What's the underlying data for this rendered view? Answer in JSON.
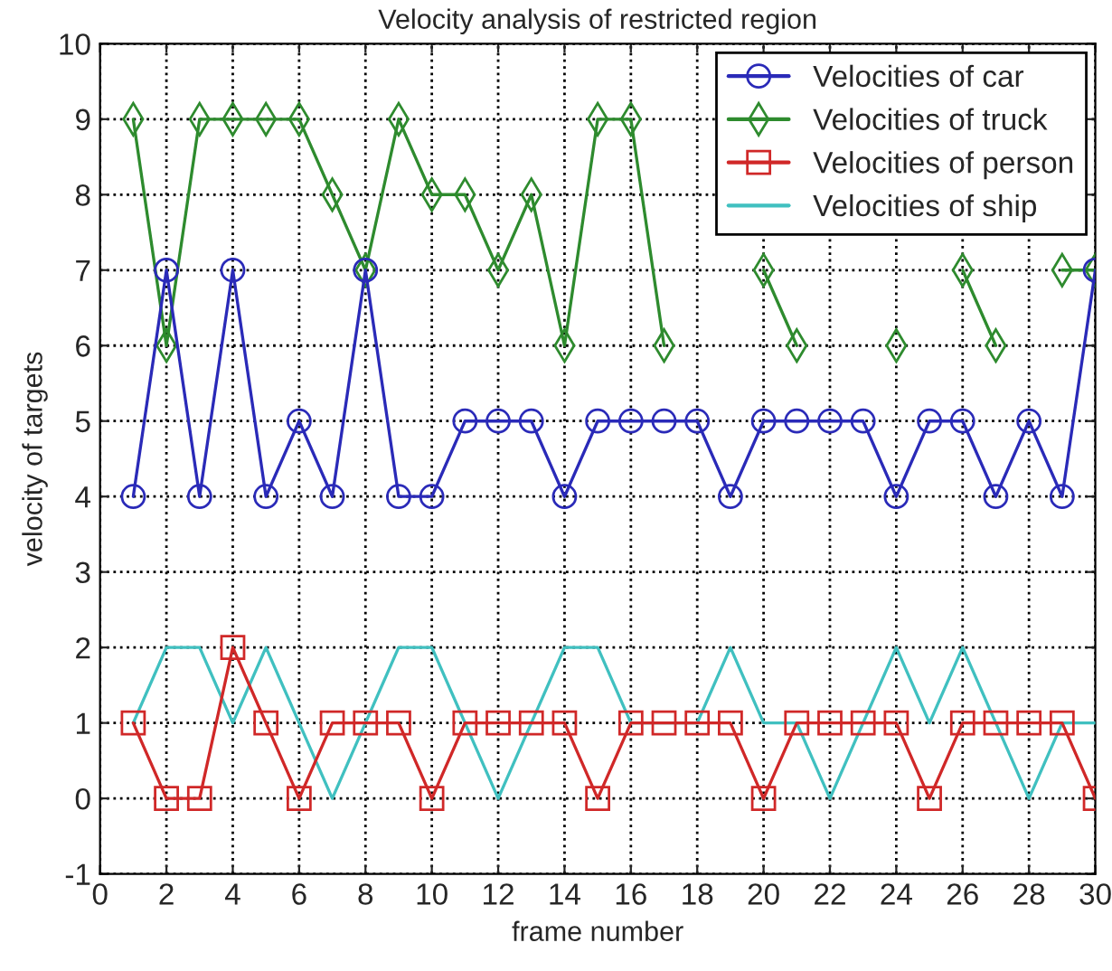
{
  "chart_data": {
    "type": "line",
    "title": "Velocity analysis of restricted region",
    "xlabel": "frame number",
    "ylabel": "velocity of targets",
    "x": [
      1,
      2,
      3,
      4,
      5,
      6,
      7,
      8,
      9,
      10,
      11,
      12,
      13,
      14,
      15,
      16,
      17,
      18,
      19,
      20,
      21,
      22,
      23,
      24,
      25,
      26,
      27,
      28,
      29,
      30
    ],
    "series": [
      {
        "name": "Velocities of car",
        "color": "#2a2ab8",
        "marker": "circle",
        "values": [
          4,
          7,
          4,
          7,
          4,
          5,
          4,
          7,
          4,
          4,
          5,
          5,
          5,
          4,
          5,
          5,
          5,
          5,
          4,
          5,
          5,
          5,
          5,
          4,
          5,
          5,
          4,
          5,
          4,
          7
        ]
      },
      {
        "name": "Velocities of truck",
        "color": "#2e8b2e",
        "marker": "diamond",
        "values": [
          9,
          6,
          9,
          9,
          9,
          9,
          8,
          7,
          9,
          8,
          8,
          7,
          8,
          6,
          9,
          9,
          6,
          null,
          null,
          7,
          6,
          null,
          null,
          6,
          null,
          7,
          6,
          null,
          7,
          7
        ]
      },
      {
        "name": "Velocities of person",
        "color": "#d02828",
        "marker": "square",
        "values": [
          1,
          0,
          0,
          2,
          1,
          0,
          1,
          1,
          1,
          0,
          1,
          1,
          1,
          1,
          0,
          1,
          1,
          1,
          1,
          0,
          1,
          1,
          1,
          1,
          0,
          1,
          1,
          1,
          1,
          0
        ]
      },
      {
        "name": "Velocities of ship",
        "color": "#40c0c0",
        "marker": "none",
        "values": [
          1,
          2,
          2,
          1,
          2,
          1,
          0,
          1,
          2,
          2,
          1,
          0,
          1,
          2,
          2,
          1,
          1,
          1,
          2,
          1,
          1,
          0,
          1,
          2,
          1,
          2,
          1,
          0,
          1,
          1
        ]
      }
    ],
    "xlim": [
      0,
      30
    ],
    "xticks": [
      0,
      2,
      4,
      6,
      8,
      10,
      12,
      14,
      16,
      18,
      20,
      22,
      24,
      26,
      28,
      30
    ],
    "ylim": [
      -1,
      10
    ],
    "yticks": [
      -1,
      0,
      1,
      2,
      3,
      4,
      5,
      6,
      7,
      8,
      9,
      10
    ],
    "grid": true,
    "legend": "top right",
    "line_style": "solid"
  }
}
